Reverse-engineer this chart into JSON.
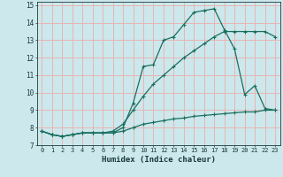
{
  "xlabel": "Humidex (Indice chaleur)",
  "background_color": "#cce8ec",
  "grid_color": "#e8b4b4",
  "line_color": "#1a6e5e",
  "xlim": [
    -0.5,
    23.5
  ],
  "ylim": [
    7,
    15.2
  ],
  "xticks": [
    0,
    1,
    2,
    3,
    4,
    5,
    6,
    7,
    8,
    9,
    10,
    11,
    12,
    13,
    14,
    15,
    16,
    17,
    18,
    19,
    20,
    21,
    22,
    23
  ],
  "yticks": [
    7,
    8,
    9,
    10,
    11,
    12,
    13,
    14,
    15
  ],
  "line1_x": [
    0,
    1,
    2,
    3,
    4,
    5,
    6,
    7,
    8,
    9,
    10,
    11,
    12,
    13,
    14,
    15,
    16,
    17,
    18,
    19,
    20,
    21,
    22,
    23
  ],
  "line1_y": [
    7.8,
    7.6,
    7.5,
    7.6,
    7.7,
    7.7,
    7.7,
    7.7,
    8.0,
    9.4,
    11.5,
    11.6,
    13.0,
    13.2,
    13.9,
    14.6,
    14.7,
    14.8,
    13.6,
    12.5,
    9.9,
    10.4,
    9.1,
    9.0
  ],
  "line2_x": [
    0,
    1,
    2,
    3,
    4,
    5,
    6,
    7,
    8,
    9,
    10,
    11,
    12,
    13,
    14,
    15,
    16,
    17,
    18,
    19,
    20,
    21,
    22,
    23
  ],
  "line2_y": [
    7.8,
    7.6,
    7.5,
    7.6,
    7.7,
    7.7,
    7.7,
    7.8,
    8.2,
    9.0,
    9.8,
    10.5,
    11.0,
    11.5,
    12.0,
    12.4,
    12.8,
    13.2,
    13.5,
    13.5,
    13.5,
    13.5,
    13.5,
    13.2
  ],
  "line3_x": [
    0,
    1,
    2,
    3,
    4,
    5,
    6,
    7,
    8,
    9,
    10,
    11,
    12,
    13,
    14,
    15,
    16,
    17,
    18,
    19,
    20,
    21,
    22,
    23
  ],
  "line3_y": [
    7.8,
    7.6,
    7.5,
    7.6,
    7.7,
    7.7,
    7.7,
    7.7,
    7.8,
    8.0,
    8.2,
    8.3,
    8.4,
    8.5,
    8.55,
    8.65,
    8.7,
    8.75,
    8.8,
    8.85,
    8.9,
    8.9,
    9.0,
    9.0
  ]
}
